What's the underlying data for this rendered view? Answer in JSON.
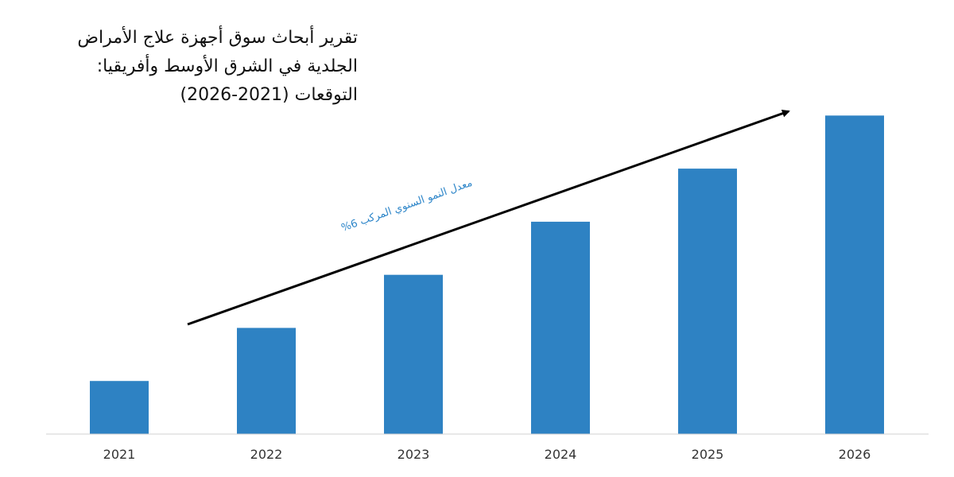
{
  "title": {
    "lines": [
      "تقرير أبحاث سوق أجهزة علاج الأمراض",
      "الجلدية في الشرق الأوسط وأفريقيا:",
      "التوقعات (2021-2026)"
    ]
  },
  "chart_data": {
    "type": "bar",
    "categories": [
      "2021",
      "2022",
      "2023",
      "2024",
      "2025",
      "2026"
    ],
    "values": [
      1,
      2,
      3,
      4,
      5,
      6
    ],
    "title": "تقرير أبحاث سوق أجهزة علاج الأمراض الجلدية في الشرق الأوسط وأفريقيا: التوقعات (2021-2026)",
    "xlabel": "",
    "ylabel": "",
    "ylim": [
      0,
      6.05
    ],
    "grid": false,
    "legend": "none",
    "annotation": "معدل النمو السنوي المركب 6%",
    "bar_color": "#2e82c3",
    "arrow_color": "#000000",
    "annotation_color": "#2e86c9"
  }
}
